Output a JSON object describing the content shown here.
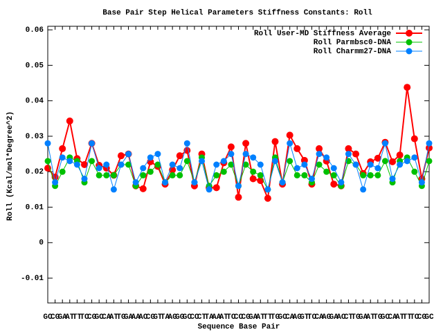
{
  "chart_data": {
    "type": "line",
    "title": "Base Pair Step Helical Parameters Stiffness Constants: Roll",
    "x_label": "Sequence Base Pair",
    "y_label": "Roll (Kcal/mol*Degree^2)",
    "categories": [
      "GC",
      "CG",
      "GA",
      "AT",
      "TT",
      "TC",
      "CG",
      "GC",
      "CA",
      "AT",
      "TG",
      "GA",
      "AA",
      "AC",
      "CG",
      "GT",
      "TA",
      "AG",
      "GG",
      "GC",
      "CC",
      "CT",
      "TA",
      "AA",
      "AT",
      "TC",
      "CC",
      "CG",
      "GA",
      "AT",
      "TT",
      "TG",
      "GC",
      "CA",
      "AG",
      "GT",
      "TC",
      "CA",
      "AG",
      "GA",
      "AC",
      "CT",
      "TG",
      "GA",
      "AT",
      "TG",
      "GC",
      "CA",
      "AT",
      "TT",
      "TC",
      "CG",
      "GC"
    ],
    "ylim": [
      -0.017,
      0.061
    ],
    "yticks": [
      -0.01,
      0,
      0.01,
      0.02,
      0.03,
      0.04,
      0.05,
      0.06
    ],
    "legend": "top-right",
    "series": [
      {
        "name": "Roll User-MD Stiffness Average",
        "color": "#ff0000",
        "values": [
          0.021,
          0.0185,
          0.0265,
          0.0343,
          0.0237,
          0.022,
          0.028,
          0.0218,
          0.021,
          0.019,
          0.0245,
          0.025,
          0.016,
          0.0152,
          0.0228,
          0.0215,
          0.0165,
          0.0205,
          0.0245,
          0.026,
          0.016,
          0.025,
          0.0155,
          0.0155,
          0.0225,
          0.027,
          0.0128,
          0.028,
          0.018,
          0.0175,
          0.0125,
          0.0285,
          0.0165,
          0.0303,
          0.0265,
          0.0232,
          0.0165,
          0.0265,
          0.023,
          0.0165,
          0.016,
          0.0265,
          0.025,
          0.0195,
          0.0228,
          0.0238,
          0.0283,
          0.0228,
          0.0247,
          0.0438,
          0.0293,
          0.018,
          0.0267
        ]
      },
      {
        "name": "Roll Parmbsc0-DNA",
        "color": "#00c000",
        "values": [
          0.023,
          0.016,
          0.02,
          0.024,
          0.023,
          0.017,
          0.023,
          0.019,
          0.019,
          0.019,
          0.022,
          0.022,
          0.016,
          0.019,
          0.02,
          0.022,
          0.017,
          0.019,
          0.019,
          0.023,
          0.017,
          0.024,
          0.016,
          0.019,
          0.02,
          0.022,
          0.016,
          0.022,
          0.02,
          0.019,
          0.015,
          0.024,
          0.017,
          0.023,
          0.019,
          0.019,
          0.017,
          0.022,
          0.02,
          0.019,
          0.016,
          0.023,
          0.022,
          0.019,
          0.019,
          0.019,
          0.023,
          0.017,
          0.023,
          0.024,
          0.02,
          0.016,
          0.023
        ]
      },
      {
        "name": "Roll Charmm27-DNA",
        "color": "#0080ff",
        "values": [
          0.028,
          0.017,
          0.024,
          0.023,
          0.022,
          0.018,
          0.028,
          0.021,
          0.022,
          0.015,
          0.022,
          0.025,
          0.017,
          0.021,
          0.024,
          0.025,
          0.017,
          0.022,
          0.021,
          0.028,
          0.017,
          0.023,
          0.015,
          0.022,
          0.023,
          0.025,
          0.016,
          0.025,
          0.024,
          0.022,
          0.015,
          0.023,
          0.017,
          0.028,
          0.021,
          0.022,
          0.018,
          0.025,
          0.024,
          0.021,
          0.017,
          0.025,
          0.022,
          0.015,
          0.022,
          0.021,
          0.028,
          0.018,
          0.022,
          0.023,
          0.024,
          0.017,
          0.028
        ]
      }
    ]
  }
}
